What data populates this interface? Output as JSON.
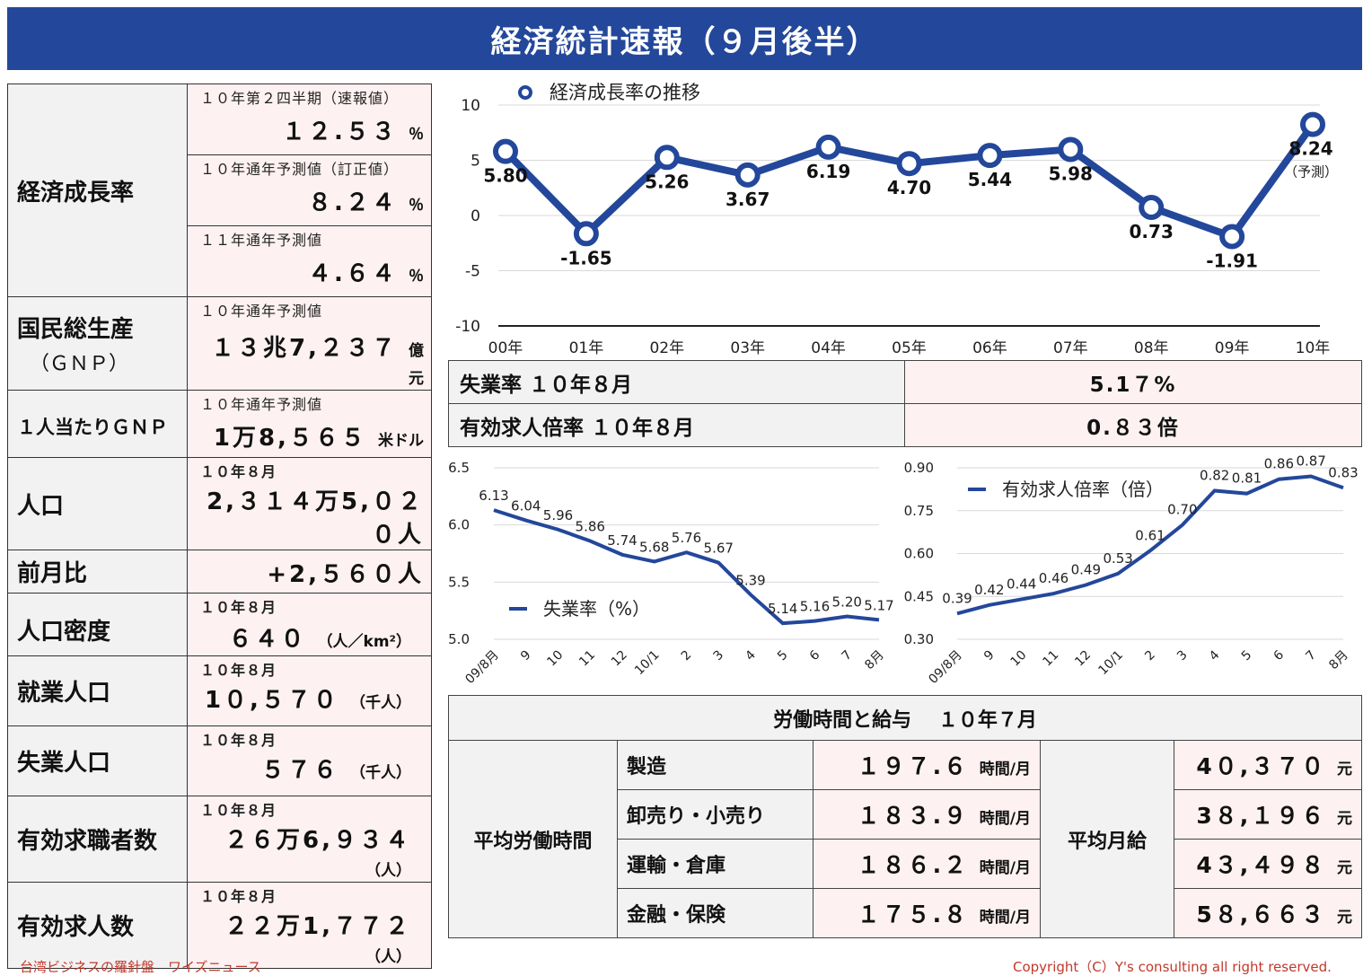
{
  "title": "経済統計速報（９月後半）",
  "gdp": {
    "label": "経済成長率",
    "rows": [
      {
        "sub": "１０年第２四半期（速報値）",
        "value": "１２.５３",
        "unit": "％"
      },
      {
        "sub": "１０年通年予測値（訂正値）",
        "value": "８.２４",
        "unit": "％"
      },
      {
        "sub": "１１年通年予測値",
        "value": "４.６４",
        "unit": "％"
      }
    ]
  },
  "gnp": {
    "label": "国民総生産",
    "label2": "（ＧＮＰ）",
    "sub": "１０年通年予測値",
    "value": "１３兆7,２３７",
    "unit": "億元"
  },
  "gnp_pc": {
    "label": "１人当たりＧＮＰ",
    "sub": "１０年通年予測値",
    "value": "1万8,５６５",
    "unit": "米ドル"
  },
  "population": {
    "rows": [
      {
        "label": "人口",
        "sub": "１０年８月",
        "value": "2,３１４万5,０２０人",
        "unit": ""
      },
      {
        "label": "前月比",
        "sub": "",
        "value": "+2,５６０人",
        "unit": ""
      },
      {
        "label": "人口密度",
        "sub": "１０年８月",
        "value": "６４０",
        "unit": "（人／km²）"
      }
    ]
  },
  "labor_force": {
    "rows": [
      {
        "label": "就業人口",
        "sub": "１０年８月",
        "value": "1０,５７０",
        "unit": "（千人）"
      },
      {
        "label": "失業人口",
        "sub": "１０年８月",
        "value": "５７６",
        "unit": "（千人）"
      },
      {
        "label": "有効求職者数",
        "sub": "１０年８月",
        "value": "２６万6,９３４",
        "unit": "（人）"
      },
      {
        "label": "有効求人数",
        "sub": "１０年８月",
        "value": "２２万1,７７２",
        "unit": "（人）"
      }
    ]
  },
  "summary": {
    "unemp_label": "失業率 １０年８月",
    "unemp_value": "5.1７%",
    "ratio_label": "有効求人倍率 １０年８月",
    "ratio_value": "0.８３倍"
  },
  "labor_table": {
    "title": "労働時間と給与　 １０年７月",
    "hours_label": "平均労働時間",
    "wage_label": "平均月給",
    "hours_unit": "時間/月",
    "wage_unit": "元",
    "rows": [
      {
        "sector": "製造",
        "hours": "１９７.６",
        "wage": "4０,３７０"
      },
      {
        "sector": "卸売り・小売り",
        "hours": "１８３.９",
        "wage": "3８,１９６"
      },
      {
        "sector": "運輸・倉庫",
        "hours": "１８６.２",
        "wage": "4３,４９８"
      },
      {
        "sector": "金融・保険",
        "hours": "１７５.８",
        "wage": "5８,６６３"
      }
    ]
  },
  "footer": {
    "left": "台湾ビジネスの羅針盤　ワイズニュース",
    "right": "Copyright（C）Y's consulting all right reserved."
  },
  "colors": {
    "banner": "#23479a",
    "line": "#23479a",
    "value_bg": "#fdf1f1",
    "label_bg": "#f2f2f2",
    "footer": "#c0392b"
  },
  "chart_data": [
    {
      "type": "line",
      "title": "",
      "legend": "経済成長率の推移",
      "x": [
        "00年",
        "01年",
        "02年",
        "03年",
        "04年",
        "05年",
        "06年",
        "07年",
        "08年",
        "09年",
        "10年"
      ],
      "values": [
        5.8,
        -1.65,
        5.26,
        3.67,
        6.19,
        4.7,
        5.44,
        5.98,
        0.73,
        -1.91,
        8.24
      ],
      "value_labels": [
        "5.80",
        "-1.65",
        "5.26",
        "3.67",
        "6.19",
        "4.70",
        "5.44",
        "5.98",
        "0.73",
        "-1.91",
        "8.24"
      ],
      "annotation": "（予測）",
      "yticks": [
        "10",
        "5",
        "0",
        "-5",
        "-10"
      ],
      "ylim": [
        -10,
        10
      ],
      "grid": true
    },
    {
      "type": "line",
      "legend": "失業率（%）",
      "x": [
        "09/8月",
        "9",
        "10",
        "11",
        "12",
        "10/1",
        "2",
        "3",
        "4",
        "5",
        "6",
        "7",
        "8月"
      ],
      "values": [
        6.13,
        6.04,
        5.96,
        5.86,
        5.74,
        5.68,
        5.76,
        5.67,
        5.39,
        5.14,
        5.16,
        5.2,
        5.17
      ],
      "value_labels": [
        "6.13",
        "6.04",
        "5.96",
        "5.86",
        "5.74",
        "5.68",
        "5.76",
        "5.67",
        "5.39",
        "5.14",
        "5.16",
        "5.20",
        "5.17"
      ],
      "yticks": [
        "6.5",
        "6.0",
        "5.5",
        "5.0"
      ],
      "ylim": [
        5.0,
        6.5
      ],
      "grid": true
    },
    {
      "type": "line",
      "legend": "有効求人倍率（倍）",
      "x": [
        "09/8月",
        "9",
        "10",
        "11",
        "12",
        "10/1",
        "2",
        "3",
        "4",
        "5",
        "6",
        "7",
        "8月"
      ],
      "values": [
        0.39,
        0.42,
        0.44,
        0.46,
        0.49,
        0.53,
        0.61,
        0.7,
        0.82,
        0.81,
        0.86,
        0.87,
        0.83
      ],
      "value_labels": [
        "0.39",
        "0.42",
        "0.44",
        "0.46",
        "0.49",
        "0.53",
        "0.61",
        "0.70",
        "0.82",
        "0.81",
        "0.86",
        "0.87",
        "0.83"
      ],
      "yticks": [
        "0.90",
        "0.75",
        "0.60",
        "0.45",
        "0.30"
      ],
      "ylim": [
        0.3,
        0.9
      ],
      "grid": true
    }
  ]
}
